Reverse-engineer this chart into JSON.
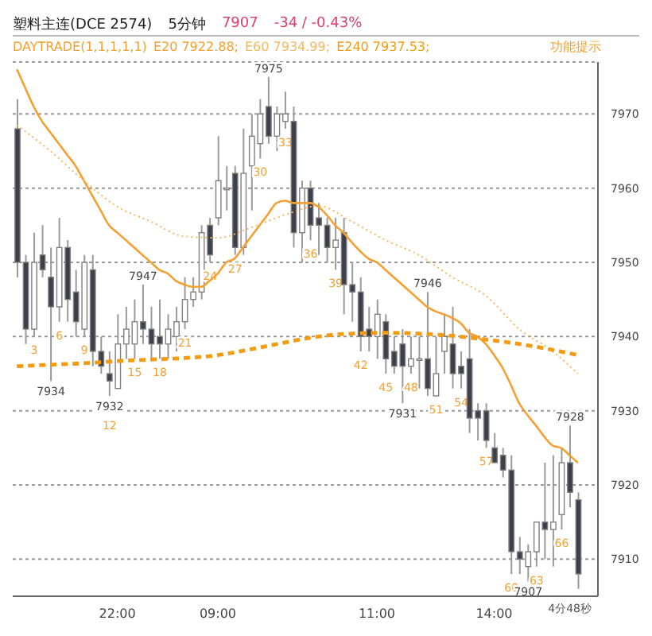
{
  "chart_data": {
    "type": "candlestick",
    "title": "塑料主连(DCE 2574)",
    "subtitle": "5分钟",
    "legend_title": "DAYTRADE(1,1,1,1,1)",
    "legend": "top left",
    "grid": "y",
    "annotations": [
      "7907",
      "-34 / -0.43%",
      "功能提示",
      "4分48秒",
      {
        "text": "7975",
        "y": 7975
      },
      {
        "text": "7934",
        "y": 7934
      },
      {
        "text": "7932",
        "y": 7932
      },
      {
        "text": "7947",
        "y": 7947
      },
      {
        "text": "7946",
        "y": 7946
      },
      {
        "text": "7931",
        "y": 7931
      },
      {
        "text": "7907",
        "y": 7907
      },
      {
        "text": "7928",
        "y": 7928
      }
    ],
    "categories": [
      null,
      null,
      null,
      null,
      null,
      null,
      null,
      null,
      null,
      null,
      null,
      null,
      "22:00",
      null,
      null,
      null,
      null,
      null,
      null,
      null,
      null,
      null,
      null,
      null,
      "09:00",
      null,
      null,
      null,
      null,
      null,
      null,
      null,
      null,
      null,
      null,
      null,
      null,
      null,
      null,
      null,
      null,
      null,
      null,
      "11:00",
      null,
      null,
      null,
      null,
      null,
      null,
      null,
      null,
      null,
      null,
      null,
      null,
      null,
      "14:00",
      null,
      null,
      null,
      null,
      null,
      null,
      null,
      null,
      null,
      null
    ],
    "ylim": [
      7905,
      7977
    ],
    "yticks": [
      7910,
      7920,
      7930,
      7940,
      7950,
      7960,
      7970
    ],
    "series": [
      {
        "type": "candlestick",
        "colors": [
          "#3d3f4b",
          "#3d3f4b",
          "#ffffff",
          "#3d3f4b",
          "#3d3f4b",
          "#ffffff",
          "#3d3f4b",
          "#3d3f4b",
          "#ffffff",
          "#3d3f4b",
          "#3d3f4b",
          "#3d3f4b",
          "#ffffff",
          "#ffffff",
          "#ffffff",
          "#3d3f4b",
          "#3d3f4b",
          "#3d3f4b",
          "#ffffff",
          "#ffffff",
          "#ffffff",
          "#ffffff",
          "#ffffff",
          "#3d3f4b",
          "#ffffff",
          "#ffffff",
          "#3d3f4b",
          "#ffffff",
          "#ffffff",
          "#ffffff",
          "#3d3f4b",
          "#ffffff",
          "#ffffff",
          "#3d3f4b",
          "#ffffff",
          "#3d3f4b",
          "#3d3f4b",
          "#3d3f4b",
          "#ffffff",
          "#3d3f4b",
          "#3d3f4b",
          "#3d3f4b",
          "#3d3f4b",
          "#ffffff",
          "#3d3f4b",
          "#3d3f4b",
          "#3d3f4b",
          "#ffffff",
          "#ffffff",
          "#3d3f4b",
          "#ffffff",
          "#ffffff",
          "#3d3f4b",
          "#3d3f4b",
          "#3d3f4b",
          "#3d3f4b",
          "#3d3f4b",
          "#3d3f4b",
          "#3d3f4b",
          "#3d3f4b",
          "#3d3f4b",
          "#ffffff",
          "#ffffff",
          "#3d3f4b",
          "#ffffff",
          "#ffffff",
          "#3d3f4b",
          "#3d3f4b"
        ],
        "ohlc": [
          [
            7968,
            7972,
            7948,
            7950
          ],
          [
            7950,
            7951,
            7939,
            7941
          ],
          [
            7941,
            7954,
            7940,
            7950
          ],
          [
            7951,
            7955,
            7948,
            7949
          ],
          [
            7948,
            7952,
            7934,
            7944
          ],
          [
            7944,
            7956,
            7942,
            7952
          ],
          [
            7952,
            7953,
            7942,
            7945
          ],
          [
            7946,
            7949,
            7940,
            7942
          ],
          [
            7941,
            7951,
            7940,
            7950
          ],
          [
            7949,
            7951,
            7936,
            7938
          ],
          [
            7938,
            7940,
            7935,
            7936
          ],
          [
            7935,
            7938,
            7932,
            7934
          ],
          [
            7933,
            7943,
            7933,
            7939
          ],
          [
            7939,
            7944,
            7937,
            7941
          ],
          [
            7939,
            7945,
            7937,
            7942
          ],
          [
            7942,
            7947,
            7939,
            7941
          ],
          [
            7941,
            7944,
            7937,
            7939
          ],
          [
            7940,
            7945,
            7937,
            7939
          ],
          [
            7939,
            7943,
            7937,
            7941
          ],
          [
            7940,
            7944,
            7938,
            7942
          ],
          [
            7942,
            7948,
            7941,
            7945
          ],
          [
            7945,
            7948,
            7944,
            7946
          ],
          [
            7946,
            7955,
            7945,
            7954
          ],
          [
            7955,
            7956,
            7950,
            7951
          ],
          [
            7956,
            7967,
            7955,
            7961
          ],
          [
            7960,
            7963,
            7957,
            7960
          ],
          [
            7962,
            7963,
            7951,
            7952
          ],
          [
            7952,
            7968,
            7951,
            7962
          ],
          [
            7963,
            7970,
            7957,
            7967
          ],
          [
            7966,
            7972,
            7964,
            7970
          ],
          [
            7971,
            7975,
            7966,
            7967
          ],
          [
            7967,
            7971,
            7965,
            7970
          ],
          [
            7969,
            7973,
            7968,
            7970
          ],
          [
            7969,
            7971,
            7952,
            7954
          ],
          [
            7954,
            7961,
            7950,
            7960
          ],
          [
            7960,
            7961,
            7953,
            7955
          ],
          [
            7956,
            7958,
            7951,
            7955
          ],
          [
            7955,
            7956,
            7950,
            7952
          ],
          [
            7952,
            7956,
            7949,
            7953
          ],
          [
            7954,
            7956,
            7943,
            7947
          ],
          [
            7947,
            7950,
            7942,
            7946
          ],
          [
            7946,
            7948,
            7938,
            7940
          ],
          [
            7941,
            7944,
            7938,
            7940
          ],
          [
            7940,
            7945,
            7937,
            7943
          ],
          [
            7942,
            7943,
            7935,
            7937
          ],
          [
            7938,
            7940,
            7935,
            7936
          ],
          [
            7939,
            7941,
            7931,
            7936
          ],
          [
            7936,
            7940,
            7935,
            7937
          ],
          [
            7937,
            7940,
            7933,
            7937
          ],
          [
            7937,
            7946,
            7932,
            7933
          ],
          [
            7932,
            7940,
            7932,
            7935
          ],
          [
            7938,
            7943,
            7935,
            7940
          ],
          [
            7939,
            7944,
            7933,
            7935
          ],
          [
            7936,
            7938,
            7933,
            7935
          ],
          [
            7937,
            7941,
            7927,
            7929
          ],
          [
            7930,
            7931,
            7926,
            7929
          ],
          [
            7930,
            7931,
            7925,
            7926
          ],
          [
            7925,
            7927,
            7923,
            7923
          ],
          [
            7924,
            7925,
            7921,
            7922
          ],
          [
            7922,
            7924,
            7908,
            7911
          ],
          [
            7911,
            7913,
            7908,
            7910
          ],
          [
            7909,
            7912,
            7907,
            7911
          ],
          [
            7911,
            7915,
            7909,
            7915
          ],
          [
            7915,
            7923,
            7910,
            7914
          ],
          [
            7914,
            7924,
            7909,
            7915
          ],
          [
            7916,
            7925,
            7914,
            7923
          ],
          [
            7923,
            7928,
            7917,
            7919
          ],
          [
            7918,
            7919,
            7906,
            7908
          ]
        ],
        "value_labels": [
          null,
          null,
          "3",
          null,
          null,
          "6",
          null,
          null,
          "9",
          null,
          null,
          "12",
          null,
          null,
          "15",
          null,
          null,
          "18",
          null,
          null,
          "21",
          null,
          null,
          "24",
          null,
          null,
          "27",
          null,
          null,
          "30",
          null,
          null,
          "33",
          null,
          null,
          "36",
          null,
          null,
          "39",
          null,
          null,
          "42",
          null,
          null,
          "45",
          null,
          null,
          "48",
          null,
          null,
          "51",
          null,
          null,
          "54",
          null,
          null,
          "57",
          null,
          null,
          "60",
          null,
          null,
          "63",
          null,
          null,
          "66",
          null,
          null
        ]
      },
      {
        "type": "line",
        "name": "E20 7922.88;",
        "color": "#f5a030",
        "line_style": "solid",
        "values": [
          7976,
          7973.5,
          7971,
          7969,
          7967.5,
          7966,
          7964.5,
          7963,
          7961,
          7959,
          7957,
          7955,
          7954,
          7953,
          7952,
          7951,
          7950,
          7949,
          7948.5,
          7947.5,
          7947,
          7946.7,
          7946.7,
          7947.5,
          7948.5,
          7950,
          7950.5,
          7952,
          7953.5,
          7955,
          7956.5,
          7958,
          7958.3,
          7958,
          7958,
          7958,
          7957.5,
          7956.4,
          7955,
          7954,
          7952.7,
          7951.5,
          7950.5,
          7950,
          7949,
          7948,
          7947,
          7946,
          7945,
          7944,
          7943.4,
          7943,
          7942.5,
          7941.8,
          7940.5,
          7940,
          7939,
          7937.5,
          7935.8,
          7933.5,
          7931,
          7929.4,
          7928,
          7926.5,
          7925.3,
          7925,
          7924,
          7923
        ]
      },
      {
        "type": "line",
        "name": "E60 7934.99;",
        "color": "#f7b860",
        "line_style": "dotted",
        "values": [
          7968.5,
          null,
          null,
          null,
          7965,
          null,
          null,
          null,
          7961,
          null,
          null,
          null,
          7957.5,
          null,
          null,
          null,
          7955.5,
          null,
          null,
          null,
          7953.5,
          null,
          null,
          null,
          7953.3,
          null,
          null,
          null,
          7954.7,
          null,
          null,
          null,
          7956.4,
          null,
          null,
          null,
          7957.6,
          null,
          null,
          null,
          7955.5,
          null,
          null,
          null,
          7953,
          null,
          null,
          null,
          7951,
          null,
          null,
          null,
          7948,
          null,
          null,
          null,
          7945.5,
          null,
          null,
          null,
          7941,
          null,
          null,
          null,
          7938,
          null,
          null,
          7935
        ]
      },
      {
        "type": "line",
        "name": "E240 7937.53;",
        "color": "#f39c12",
        "line_style": "dashed",
        "values": [
          7936,
          null,
          null,
          null,
          7936.2,
          null,
          null,
          null,
          7936.4,
          null,
          null,
          null,
          7936.7,
          null,
          null,
          null,
          7936.9,
          null,
          null,
          null,
          7937.1,
          null,
          null,
          null,
          7937.5,
          null,
          null,
          null,
          7938.3,
          null,
          null,
          null,
          7939.2,
          null,
          null,
          null,
          7940,
          null,
          null,
          null,
          7940.4,
          null,
          null,
          null,
          7940.5,
          null,
          null,
          null,
          7940.4,
          null,
          null,
          null,
          7940.1,
          null,
          null,
          null,
          7939.6,
          null,
          null,
          null,
          7939,
          null,
          null,
          null,
          7938.2,
          null,
          null,
          7937.5
        ]
      }
    ]
  }
}
